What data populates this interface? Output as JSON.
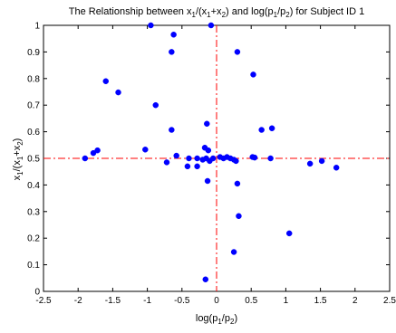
{
  "chart_data": {
    "type": "scatter",
    "title": "The Relationship between x1/(x1+x2) and log(p1/p2) for Subject ID 1",
    "title_parts": {
      "pre": "The Relationship between x",
      "s1": "1",
      "mid1": "/(x",
      "s2": "1",
      "mid2": "+x",
      "s3": "2",
      "mid3": ") and log(p",
      "s4": "1",
      "mid4": "/p",
      "s5": "2",
      "post": ") for Subject ID 1"
    },
    "xlabel": "log(p1/p2)",
    "xlabel_parts": {
      "pre": "log(p",
      "s1": "1",
      "mid": "/p",
      "s2": "2",
      "post": ")"
    },
    "ylabel": "x1/(x1+x2)",
    "ylabel_parts": {
      "pre": "x",
      "s1": "1",
      "mid1": "/(x",
      "s2": "1",
      "mid2": "+x",
      "s3": "2",
      "post": ")"
    },
    "xlim": [
      -2.5,
      2.5
    ],
    "ylim": [
      0,
      1
    ],
    "xticks": [
      "-2.5",
      "-2",
      "-1.5",
      "-1",
      "-0.5",
      "0",
      "0.5",
      "1",
      "1.5",
      "2",
      "2.5"
    ],
    "yticks": [
      "0",
      "0.1",
      "0.2",
      "0.3",
      "0.4",
      "0.5",
      "0.6",
      "0.7",
      "0.8",
      "0.9",
      "1"
    ],
    "grid": false,
    "marker_color": "#0000ff",
    "reference_line_color": "#ff0000",
    "reference_lines": {
      "x": 0,
      "y": 0.5
    },
    "points": [
      {
        "x": -0.95,
        "y": 1.0
      },
      {
        "x": -0.08,
        "y": 1.0
      },
      {
        "x": -0.62,
        "y": 0.965
      },
      {
        "x": -0.65,
        "y": 0.9
      },
      {
        "x": 0.3,
        "y": 0.9
      },
      {
        "x": 0.53,
        "y": 0.815
      },
      {
        "x": -1.6,
        "y": 0.79
      },
      {
        "x": -1.42,
        "y": 0.748
      },
      {
        "x": -0.88,
        "y": 0.7
      },
      {
        "x": -0.14,
        "y": 0.63
      },
      {
        "x": -0.65,
        "y": 0.607
      },
      {
        "x": 0.8,
        "y": 0.613
      },
      {
        "x": 0.65,
        "y": 0.607
      },
      {
        "x": -0.17,
        "y": 0.54
      },
      {
        "x": -1.03,
        "y": 0.533
      },
      {
        "x": -1.72,
        "y": 0.53
      },
      {
        "x": -1.78,
        "y": 0.52
      },
      {
        "x": -0.12,
        "y": 0.53
      },
      {
        "x": -0.58,
        "y": 0.51
      },
      {
        "x": -1.9,
        "y": 0.5
      },
      {
        "x": -0.4,
        "y": 0.5
      },
      {
        "x": -0.28,
        "y": 0.5
      },
      {
        "x": -0.2,
        "y": 0.495
      },
      {
        "x": -0.15,
        "y": 0.5
      },
      {
        "x": -0.1,
        "y": 0.49
      },
      {
        "x": -0.05,
        "y": 0.5
      },
      {
        "x": 0.05,
        "y": 0.505
      },
      {
        "x": 0.1,
        "y": 0.5
      },
      {
        "x": 0.15,
        "y": 0.505
      },
      {
        "x": 0.2,
        "y": 0.5
      },
      {
        "x": 0.25,
        "y": 0.495
      },
      {
        "x": 0.28,
        "y": 0.49
      },
      {
        "x": 0.52,
        "y": 0.505
      },
      {
        "x": 0.55,
        "y": 0.503
      },
      {
        "x": 0.78,
        "y": 0.5
      },
      {
        "x": -0.72,
        "y": 0.485
      },
      {
        "x": 1.35,
        "y": 0.48
      },
      {
        "x": 1.52,
        "y": 0.49
      },
      {
        "x": 1.73,
        "y": 0.465
      },
      {
        "x": -0.42,
        "y": 0.47
      },
      {
        "x": -0.28,
        "y": 0.47
      },
      {
        "x": -0.13,
        "y": 0.415
      },
      {
        "x": 0.3,
        "y": 0.405
      },
      {
        "x": 0.32,
        "y": 0.283
      },
      {
        "x": 1.05,
        "y": 0.218
      },
      {
        "x": 0.25,
        "y": 0.148
      },
      {
        "x": -0.16,
        "y": 0.045
      }
    ]
  }
}
